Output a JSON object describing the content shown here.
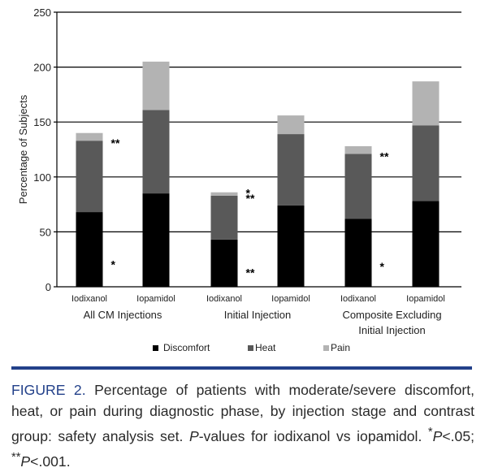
{
  "chart_data": {
    "type": "bar",
    "stacked": true,
    "title": "",
    "xlabel": "",
    "ylabel": "Percentage of Subjects",
    "ylim": [
      0,
      250
    ],
    "yticks": [
      0,
      50,
      100,
      150,
      200,
      250
    ],
    "grid": "horizontal",
    "legend_position": "bottom",
    "groups": [
      {
        "label": "All CM Injections",
        "label_lines": [
          "All CM Injections"
        ],
        "bars": [
          0,
          1
        ]
      },
      {
        "label": "Initial Injection",
        "label_lines": [
          "Initial Injection"
        ],
        "bars": [
          2,
          3
        ]
      },
      {
        "label": "Composite Excluding Initial Injection",
        "label_lines": [
          "Composite Excluding",
          "Initial Injection"
        ],
        "bars": [
          4,
          5
        ]
      }
    ],
    "categories": [
      "Iodixanol",
      "Iopamidol",
      "Iodixanol",
      "Iopamidol",
      "Iodixanol",
      "Iopamidol"
    ],
    "series": [
      {
        "name": "Discomfort",
        "color": "#000000",
        "values": [
          68,
          85,
          43,
          74,
          62,
          78
        ]
      },
      {
        "name": "Heat",
        "color": "#595959",
        "values": [
          65,
          76,
          40,
          65,
          59,
          69
        ]
      },
      {
        "name": "Pain",
        "color": "#b3b3b3",
        "values": [
          7,
          44,
          3,
          17,
          7,
          40
        ]
      }
    ],
    "annotations": [
      {
        "bar": 0,
        "series": "Discomfort",
        "text": "*"
      },
      {
        "bar": 0,
        "series": "Heat",
        "text": "**"
      },
      {
        "bar": 2,
        "series": "Discomfort",
        "text": "**"
      },
      {
        "bar": 2,
        "series": "Heat",
        "text": "**"
      },
      {
        "bar": 2,
        "series": "Pain",
        "text": "*"
      },
      {
        "bar": 4,
        "series": "Discomfort",
        "text": "*"
      },
      {
        "bar": 4,
        "series": "Heat",
        "text": "**"
      }
    ]
  },
  "caption": {
    "label": "FIGURE 2.",
    "text1": " Percentage of patients with moderate/severe discomfort, heat, or pain during diagnostic phase, by injection stage and contrast group: safety analysis set. ",
    "p_italic": "P",
    "text2": "-values for iodixanol vs iopamidol. ",
    "sig1_mark": "*",
    "sig1_p": "P",
    "sig1_val": "<.05; ",
    "sig2_mark": "**",
    "sig2_p": "P",
    "sig2_val": "<.001."
  }
}
